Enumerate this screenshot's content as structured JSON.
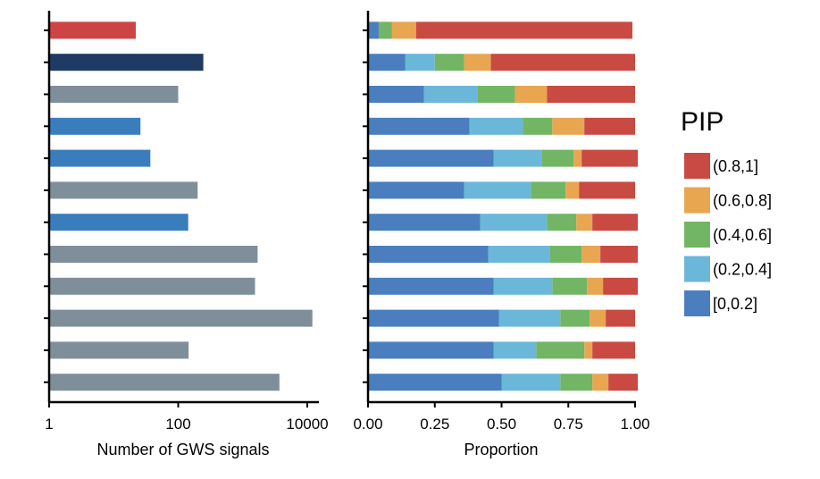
{
  "chart_data": [
    {
      "type": "bar",
      "orientation": "horizontal",
      "x_scale": "log10",
      "xlim": [
        1,
        10000
      ],
      "xlabel": "Number of GWS signals",
      "x_ticks": [
        {
          "value": 1,
          "label": "1"
        },
        {
          "value": 100,
          "label": "100"
        },
        {
          "value": 10000,
          "label": "10000"
        }
      ],
      "rows": 12,
      "values": [
        22,
        245,
        100,
        26,
        37,
        200,
        143,
        1700,
        1550,
        12000,
        145,
        3700
      ],
      "colors": [
        "#cc4444",
        "#1f3b63",
        "#7f8f9a",
        "#3a7dbd",
        "#3a7dbd",
        "#7f8f9a",
        "#3a7dbd",
        "#7f8f9a",
        "#7f8f9a",
        "#7f8f9a",
        "#7f8f9a",
        "#7f8f9a"
      ]
    },
    {
      "type": "bar",
      "stacked": true,
      "orientation": "horizontal",
      "xlim": [
        0,
        1
      ],
      "xlabel": "Proportion",
      "x_ticks": [
        {
          "value": 0,
          "label": "0.00"
        },
        {
          "value": 0.25,
          "label": "0.25"
        },
        {
          "value": 0.5,
          "label": "0.50"
        },
        {
          "value": 0.75,
          "label": "0.75"
        },
        {
          "value": 1,
          "label": "1.00"
        }
      ],
      "series": [
        {
          "name": "[0,0.2]",
          "color": "#4a7ebf",
          "values": [
            0.04,
            0.14,
            0.21,
            0.38,
            0.47,
            0.36,
            0.42,
            0.45,
            0.47,
            0.49,
            0.47,
            0.5
          ]
        },
        {
          "name": "(0.2,0.4]",
          "color": "#6bb7d9",
          "values": [
            0.0,
            0.11,
            0.2,
            0.2,
            0.18,
            0.25,
            0.25,
            0.23,
            0.22,
            0.23,
            0.16,
            0.22
          ]
        },
        {
          "name": "(0.4,0.6]",
          "color": "#72b564",
          "values": [
            0.05,
            0.11,
            0.14,
            0.11,
            0.12,
            0.13,
            0.11,
            0.12,
            0.13,
            0.11,
            0.18,
            0.12
          ]
        },
        {
          "name": "(0.6,0.8]",
          "color": "#e7a64f",
          "values": [
            0.09,
            0.1,
            0.12,
            0.12,
            0.03,
            0.05,
            0.06,
            0.07,
            0.06,
            0.06,
            0.03,
            0.06
          ]
        },
        {
          "name": "(0.8,1]",
          "color": "#c94a42",
          "values": [
            0.81,
            0.54,
            0.33,
            0.19,
            0.21,
            0.21,
            0.17,
            0.14,
            0.13,
            0.11,
            0.16,
            0.11
          ]
        }
      ],
      "legend": {
        "title": "PIP",
        "placement": "right",
        "entries": [
          "(0.8,1]",
          "(0.6,0.8]",
          "(0.4,0.6]",
          "(0.2,0.4]",
          "[0,0.2]"
        ]
      }
    }
  ]
}
